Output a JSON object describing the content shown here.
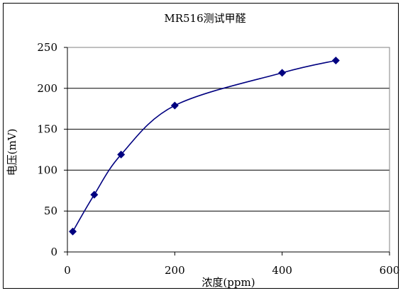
{
  "chart_data": {
    "type": "scatter",
    "title": "MR516测试甲醛",
    "xlabel": "浓度(ppm)",
    "ylabel": "电压(mV)",
    "xlim": [
      0,
      600
    ],
    "ylim": [
      0,
      250
    ],
    "xticks": [
      0,
      200,
      400,
      600
    ],
    "yticks": [
      0,
      50,
      100,
      150,
      200,
      250
    ],
    "grid": "horizontal",
    "legend": "none",
    "smooth_line": true,
    "colors": {
      "series": "#000080",
      "grid": "#000000",
      "plot_background": "#ffffff"
    },
    "series": [
      {
        "x": [
          10,
          50,
          100,
          200,
          400,
          500
        ],
        "y": [
          25,
          70,
          119,
          179,
          219,
          234
        ]
      }
    ]
  }
}
